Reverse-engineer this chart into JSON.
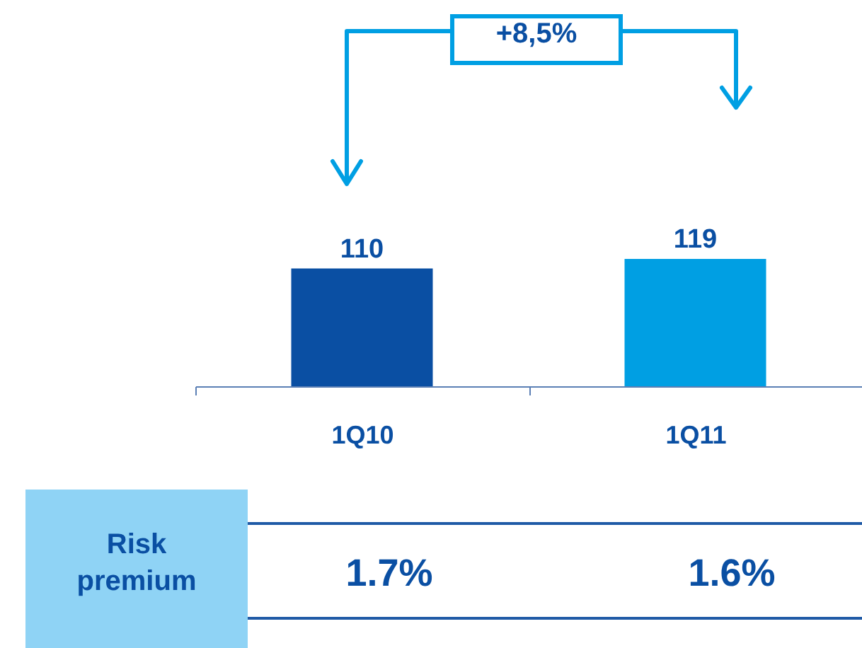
{
  "chart_data": {
    "type": "bar",
    "categories": [
      "1Q10",
      "1Q11"
    ],
    "values": [
      110,
      119
    ],
    "colors": [
      "#0a4fa3",
      "#009fe3"
    ],
    "data_labels": true,
    "tick_labels": "x",
    "grid": false,
    "annotations": [
      "+8,5%",
      "Risk premium",
      "1.7%",
      "1.6%"
    ]
  }
}
